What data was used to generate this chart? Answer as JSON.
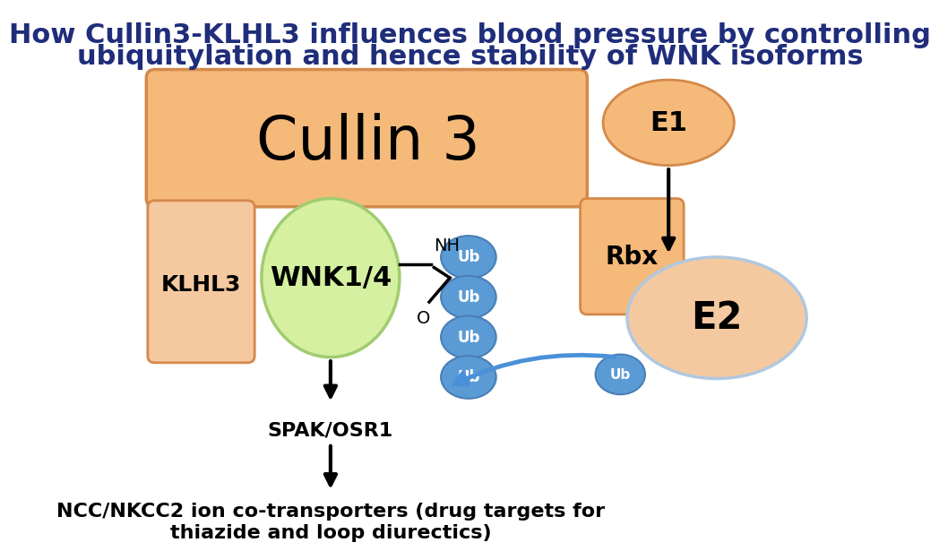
{
  "title_line1": "How Cullin3-KLHL3 influences blood pressure by controlling",
  "title_line2": "ubiquitylation and hence stability of WNK isoforms",
  "title_color": "#1f2d7a",
  "bg_color": "#ffffff",
  "orange_fill": "#f5b97a",
  "orange_light": "#f5c9a0",
  "orange_stroke": "#d4894a",
  "green_fill": "#d4f0a0",
  "green_stroke": "#a0cc70",
  "blue_fill": "#5b9bd5",
  "blue_stroke": "#4a7fb5",
  "e2_fill": "#f5c9a0",
  "e2_stroke": "#b0c8e0",
  "cullin_fill": "#f5b97a",
  "cullin_stroke": "#d4894a"
}
